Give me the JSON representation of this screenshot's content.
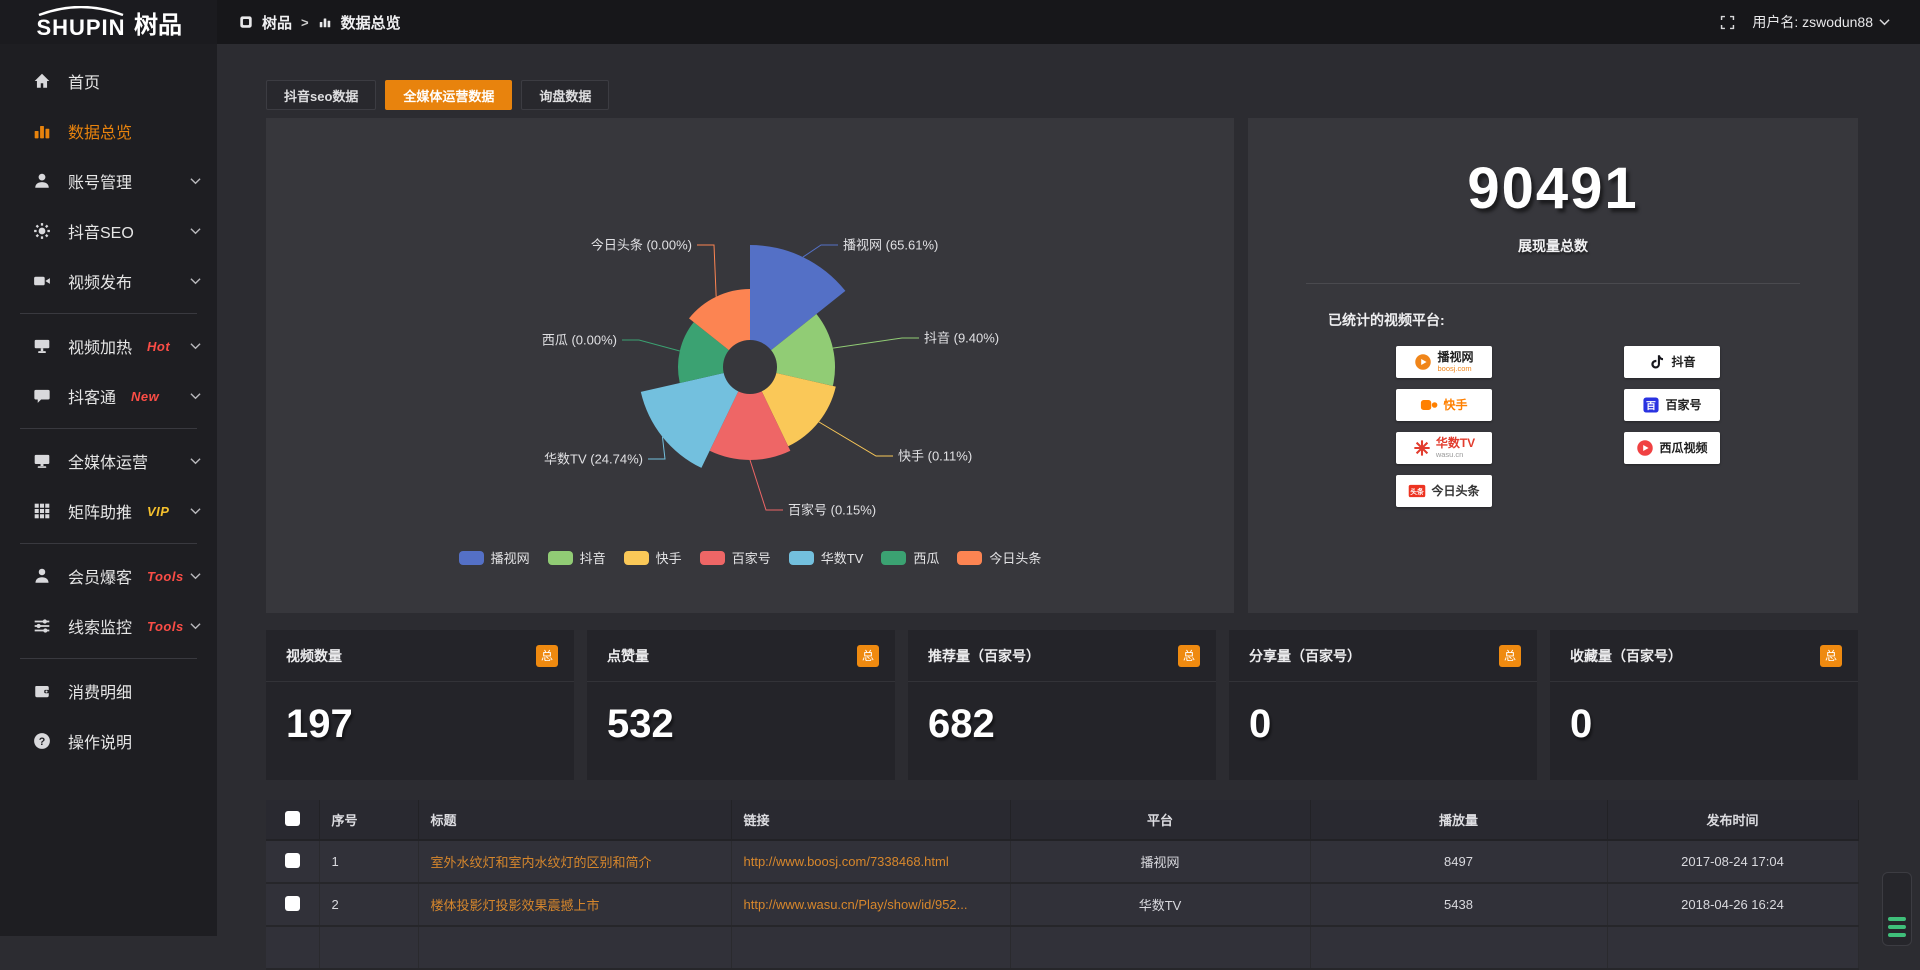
{
  "topbar": {
    "logo_primary": "SHUPIN",
    "logo_secondary": "树品",
    "breadcrumb": [
      "树品",
      "数据总览"
    ],
    "username": "用户名: zswodun88"
  },
  "sidebar": {
    "items": [
      {
        "type": "item",
        "icon": "home-icon",
        "label": "首页"
      },
      {
        "type": "item",
        "icon": "bar-chart-icon",
        "label": "数据总览",
        "active": true
      },
      {
        "type": "item",
        "icon": "user-icon",
        "label": "账号管理",
        "chevron": true
      },
      {
        "type": "item",
        "icon": "gear-icon",
        "label": "抖音SEO",
        "chevron": true
      },
      {
        "type": "item",
        "icon": "video-icon",
        "label": "视频发布",
        "chevron": true
      },
      {
        "type": "divider"
      },
      {
        "type": "item",
        "icon": "screen-icon",
        "label": "视频加热",
        "badge": "Hot",
        "badge_color": "#fb4d46",
        "chevron": true
      },
      {
        "type": "item",
        "icon": "chat-icon",
        "label": "抖客通",
        "badge": "New",
        "badge_color": "#fb4d46",
        "chevron": true
      },
      {
        "type": "divider"
      },
      {
        "type": "item",
        "icon": "monitor-icon",
        "label": "全媒体运营",
        "chevron": true
      },
      {
        "type": "item",
        "icon": "grid-icon",
        "label": "矩阵助推",
        "badge": "VIP",
        "badge_color": "#f6c12d",
        "chevron": true
      },
      {
        "type": "divider"
      },
      {
        "type": "item",
        "icon": "person-icon",
        "label": "会员爆客",
        "badge": "Tools",
        "badge_color": "#fb4d46",
        "chevron": true
      },
      {
        "type": "item",
        "icon": "sliders-icon",
        "label": "线索监控",
        "badge": "Tools",
        "badge_color": "#fb4d46",
        "chevron": true
      },
      {
        "type": "divider"
      },
      {
        "type": "item",
        "icon": "wallet-icon",
        "label": "消费明细"
      },
      {
        "type": "item",
        "icon": "help-icon",
        "label": "操作说明"
      }
    ]
  },
  "tabs": [
    {
      "label": "抖音seo数据",
      "active": false
    },
    {
      "label": "全媒体运营数据",
      "active": true
    },
    {
      "label": "询盘数据",
      "active": false
    }
  ],
  "chart_data": {
    "type": "pie",
    "variant": "nightingale-rose",
    "unit": "percent",
    "slices": [
      {
        "name": "播视网",
        "value": 65.61,
        "label": "播视网 (65.61%)",
        "color": "#5470c6"
      },
      {
        "name": "抖音",
        "value": 9.4,
        "label": "抖音 (9.40%)",
        "color": "#91cc75"
      },
      {
        "name": "快手",
        "value": 0.11,
        "label": "快手 (0.11%)",
        "color": "#fac858"
      },
      {
        "name": "百家号",
        "value": 0.15,
        "label": "百家号 (0.15%)",
        "color": "#ee6666"
      },
      {
        "name": "华数TV",
        "value": 24.74,
        "label": "华数TV (24.74%)",
        "color": "#73c0de"
      },
      {
        "name": "西瓜",
        "value": 0.0,
        "label": "西瓜 (0.00%)",
        "color": "#3ba272"
      },
      {
        "name": "今日头条",
        "value": 0.0,
        "label": "今日头条 (0.00%)",
        "color": "#fc8452"
      }
    ],
    "legend": [
      "播视网",
      "抖音",
      "快手",
      "百家号",
      "华数TV",
      "西瓜",
      "今日头条"
    ],
    "legend_position": "bottom"
  },
  "summary": {
    "total_value": "90491",
    "total_label": "展现量总数",
    "platforms_title": "已统计的视频平台:",
    "platforms": [
      {
        "name": "播视网",
        "sub": "boosj.com",
        "icon": "boosj-logo",
        "col": "left",
        "name_color": "#1e1e1e",
        "sub_color": "#f08519"
      },
      {
        "name": "抖音",
        "icon": "douyin-logo",
        "col": "right",
        "name_color": "#1e1e1e"
      },
      {
        "name": "快手",
        "icon": "kuaishou-logo",
        "col": "left",
        "name_color": "#ff8000"
      },
      {
        "name": "百家号",
        "icon": "baijiahao-logo",
        "col": "right",
        "name_color": "#1e1e1e"
      },
      {
        "name": "华数TV",
        "sub": "wasu.cn",
        "icon": "wasu-logo",
        "col": "left",
        "name_color": "#e23c2e",
        "sub_color": "#999999"
      },
      {
        "name": "西瓜视频",
        "icon": "xigua-logo",
        "col": "right",
        "name_color": "#1e1e1e"
      },
      {
        "name": "今日头条",
        "icon": "toutiao-logo",
        "col": "left",
        "name_color": "#333333"
      }
    ]
  },
  "stat_cards": [
    {
      "label": "视频数量",
      "badge": "总",
      "value": "197"
    },
    {
      "label": "点赞量",
      "badge": "总",
      "value": "532"
    },
    {
      "label": "推荐量（百家号）",
      "badge": "总",
      "value": "682"
    },
    {
      "label": "分享量（百家号）",
      "badge": "总",
      "value": "0"
    },
    {
      "label": "收藏量（百家号）",
      "badge": "总",
      "value": "0"
    }
  ],
  "table": {
    "headers": [
      "序号",
      "标题",
      "链接",
      "平台",
      "播放量",
      "发布时间"
    ],
    "rows": [
      {
        "no": "1",
        "title": "室外水纹灯和室内水纹灯的区别和简介",
        "link": "http://www.boosj.com/7338468.html",
        "platform": "播视网",
        "plays": "8497",
        "time": "2017-08-24 17:04"
      },
      {
        "no": "2",
        "title": "楼体投影灯投影效果震撼上市",
        "link": "http://www.wasu.cn/Play/show/id/952...",
        "platform": "华数TV",
        "plays": "5438",
        "time": "2018-04-26 16:24"
      }
    ]
  },
  "colors": {
    "accent": "#e8830d",
    "link": "#d7872c",
    "badge": "#ef8a10"
  }
}
